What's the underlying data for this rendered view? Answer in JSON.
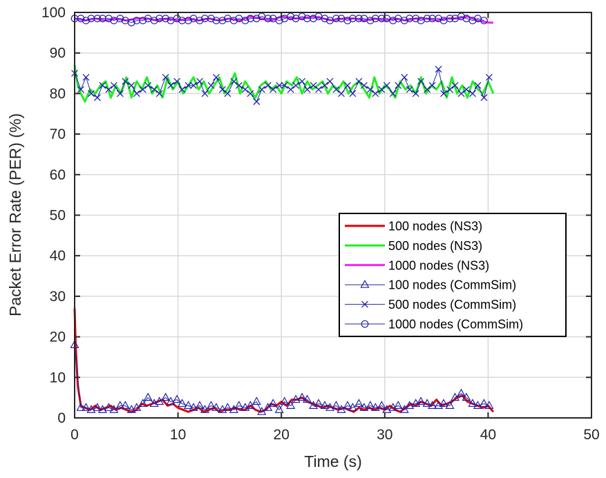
{
  "chart_data": {
    "type": "line",
    "title": "",
    "xlabel": "Time (s)",
    "ylabel": "Packet Error Rate (PER) (%)",
    "xlim": [
      0,
      50
    ],
    "ylim": [
      0,
      100
    ],
    "xticks": [
      0,
      10,
      20,
      30,
      40,
      50
    ],
    "yticks": [
      0,
      10,
      20,
      30,
      40,
      50,
      60,
      70,
      80,
      90,
      100
    ],
    "grid": true,
    "legend_position": "center-right",
    "series": [
      {
        "name": "100 nodes (NS3)",
        "color": "#e00000",
        "marker": "none",
        "x": [
          0,
          0.1,
          0.3,
          0.6,
          1.0,
          1.5,
          2.0,
          2.5,
          3.0,
          3.5,
          4.0,
          4.5,
          5.0,
          5.5,
          6.0,
          6.5,
          7.0,
          7.5,
          8.0,
          8.5,
          9.0,
          9.5,
          10.0,
          10.5,
          11.0,
          11.5,
          12.0,
          12.5,
          13.0,
          13.5,
          14.0,
          14.5,
          15.0,
          15.5,
          16.0,
          16.5,
          17.0,
          17.5,
          18.0,
          18.5,
          19.0,
          19.5,
          20.0,
          20.5,
          21.0,
          21.5,
          22.0,
          22.5,
          23.0,
          23.5,
          24.0,
          24.5,
          25.0,
          25.5,
          26.0,
          26.5,
          27.0,
          27.5,
          28.0,
          28.5,
          29.0,
          29.5,
          30.0,
          30.5,
          31.0,
          31.5,
          32.0,
          32.5,
          33.0,
          33.5,
          34.0,
          34.5,
          35.0,
          35.5,
          36.0,
          36.5,
          37.0,
          37.5,
          38.0,
          38.5,
          39.0,
          39.5,
          40.0,
          40.5
        ],
        "y": [
          27,
          18,
          8,
          3,
          2.5,
          2,
          3,
          2,
          2.5,
          3,
          2,
          2.5,
          2,
          1.5,
          2,
          3.5,
          3,
          3.5,
          4,
          4.5,
          3,
          3.5,
          2.5,
          2,
          1.5,
          2,
          2.5,
          1.5,
          2,
          2.5,
          1.5,
          2,
          2,
          2.5,
          2,
          2,
          3,
          2,
          1.5,
          2,
          3.5,
          3,
          4,
          3,
          4.5,
          4.5,
          5,
          4,
          3.5,
          3,
          2.5,
          3,
          2.5,
          2,
          2.5,
          2,
          1.5,
          2.5,
          2,
          2.5,
          2,
          2.5,
          2,
          3,
          2,
          1.5,
          2.5,
          3.5,
          3,
          4,
          3.5,
          3,
          4.5,
          3,
          3.5,
          4,
          5,
          5.5,
          4,
          3.5,
          3,
          2.5,
          3,
          1.5
        ]
      },
      {
        "name": "500 nodes (NS3)",
        "color": "#22ee22",
        "marker": "none",
        "x": [
          0,
          0.3,
          0.6,
          1.0,
          1.5,
          2.0,
          2.5,
          3.0,
          3.5,
          4.0,
          4.5,
          5.0,
          5.5,
          6.0,
          6.5,
          7.0,
          7.5,
          8.0,
          8.5,
          9.0,
          9.5,
          10.0,
          10.5,
          11.0,
          11.5,
          12.0,
          12.5,
          13.0,
          13.5,
          14.0,
          14.5,
          15.0,
          15.5,
          16.0,
          16.5,
          17.0,
          17.5,
          18.0,
          18.5,
          19.0,
          19.5,
          20.0,
          20.5,
          21.0,
          21.5,
          22.0,
          22.5,
          23.0,
          23.5,
          24.0,
          24.5,
          25.0,
          25.5,
          26.0,
          26.5,
          27.0,
          27.5,
          28.0,
          28.5,
          29.0,
          29.5,
          30.0,
          30.5,
          31.0,
          31.5,
          32.0,
          32.5,
          33.0,
          33.5,
          34.0,
          34.5,
          35.0,
          35.5,
          36.0,
          36.5,
          37.0,
          37.5,
          38.0,
          38.5,
          39.0,
          39.5,
          40.0,
          40.5
        ],
        "y": [
          87,
          82,
          80,
          78,
          81,
          80,
          82,
          83,
          79,
          82,
          80,
          84,
          79,
          83,
          81,
          84,
          80,
          82,
          79,
          84,
          81,
          83,
          80,
          82,
          84,
          81,
          83,
          80,
          82,
          84,
          80,
          82,
          85,
          80,
          83,
          81,
          79,
          82,
          83,
          81,
          82,
          80,
          83,
          82,
          84,
          80,
          83,
          81,
          82,
          83,
          80,
          82,
          81,
          83,
          80,
          82,
          83,
          81,
          79,
          84,
          80,
          82,
          81,
          79,
          83,
          81,
          82,
          80,
          84,
          80,
          82,
          81,
          83,
          79,
          84,
          80,
          82,
          79,
          83,
          81,
          80,
          83,
          80
        ]
      },
      {
        "name": "1000 nodes (NS3)",
        "color": "#ee22ee",
        "marker": "none",
        "x": [
          0,
          1.0,
          2.0,
          3.0,
          4.0,
          5.0,
          6.0,
          7.0,
          8.0,
          9.0,
          10.0,
          11.0,
          12.0,
          13.0,
          14.0,
          15.0,
          16.0,
          17.0,
          18.0,
          19.0,
          20.0,
          21.0,
          22.0,
          23.0,
          24.0,
          25.0,
          26.0,
          27.0,
          28.0,
          29.0,
          30.0,
          31.0,
          32.0,
          33.0,
          34.0,
          35.0,
          36.0,
          37.0,
          38.0,
          39.0,
          40.0,
          40.5
        ],
        "y": [
          98.5,
          98,
          98.5,
          98,
          98.5,
          98,
          98.5,
          98.5,
          98,
          98.5,
          98,
          98.5,
          98,
          98.5,
          98,
          98.5,
          98,
          99,
          98.5,
          98,
          99,
          98.5,
          98.5,
          99,
          98.5,
          98,
          98.5,
          98.5,
          98,
          98.5,
          98,
          98.5,
          98,
          98.5,
          98.5,
          98,
          98.5,
          98.5,
          99,
          98,
          97.5,
          97.5
        ]
      },
      {
        "name": "100 nodes (CommSim)",
        "color": "#2222aa",
        "marker": "triangle",
        "x": [
          0,
          0.6,
          1.1,
          1.6,
          2.2,
          2.7,
          3.3,
          3.8,
          4.4,
          4.9,
          5.5,
          6.0,
          6.6,
          7.1,
          7.7,
          8.2,
          8.8,
          9.3,
          9.9,
          10.4,
          11.0,
          11.5,
          12.1,
          12.6,
          13.2,
          13.7,
          14.3,
          14.8,
          15.4,
          15.9,
          16.5,
          17.0,
          17.6,
          18.1,
          18.7,
          19.2,
          19.8,
          20.3,
          20.9,
          21.4,
          22.0,
          22.5,
          23.1,
          23.6,
          24.2,
          24.7,
          25.3,
          25.8,
          26.4,
          26.9,
          27.5,
          28.0,
          28.6,
          29.1,
          29.7,
          30.2,
          30.8,
          31.3,
          31.9,
          32.4,
          33.0,
          33.5,
          34.1,
          34.6,
          35.2,
          35.7,
          36.3,
          36.8,
          37.4,
          37.9,
          38.5,
          39.0,
          39.6,
          40.1
        ],
        "y": [
          18,
          2.5,
          2.5,
          2,
          2.5,
          2,
          2.5,
          2,
          3,
          3,
          2,
          2.5,
          3.5,
          5,
          3.5,
          4,
          5,
          4,
          4.5,
          3.5,
          3,
          2.5,
          3,
          2,
          3,
          2.5,
          2,
          2.5,
          2,
          3,
          2.5,
          3,
          4,
          1.5,
          2.5,
          3.5,
          2,
          4,
          3,
          4.5,
          5,
          4.5,
          3,
          3.5,
          3,
          2.5,
          3,
          2,
          3,
          2.5,
          3.5,
          2.5,
          3,
          2.5,
          3,
          2,
          2.5,
          3,
          2,
          3,
          3.5,
          4,
          3.5,
          3,
          3,
          3.5,
          3,
          5,
          6,
          5,
          3.5,
          3,
          3.5,
          3
        ]
      },
      {
        "name": "500 nodes (CommSim)",
        "color": "#2222aa",
        "marker": "x",
        "x": [
          0,
          0.6,
          1.1,
          1.6,
          2.2,
          2.7,
          3.3,
          3.8,
          4.4,
          4.9,
          5.5,
          6.0,
          6.6,
          7.1,
          7.7,
          8.2,
          8.8,
          9.3,
          9.9,
          10.4,
          11.0,
          11.5,
          12.1,
          12.6,
          13.2,
          13.7,
          14.3,
          14.8,
          15.4,
          15.9,
          16.5,
          17.0,
          17.6,
          18.1,
          18.7,
          19.2,
          19.8,
          20.3,
          20.9,
          21.4,
          22.0,
          22.5,
          23.1,
          23.6,
          24.2,
          24.7,
          25.3,
          25.8,
          26.4,
          26.9,
          27.5,
          28.0,
          28.6,
          29.1,
          29.7,
          30.2,
          30.8,
          31.3,
          31.9,
          32.4,
          33.0,
          33.5,
          34.1,
          34.6,
          35.2,
          35.7,
          36.3,
          36.8,
          37.4,
          37.9,
          38.5,
          39.0,
          39.6,
          40.1
        ],
        "y": [
          85,
          81,
          84,
          80,
          79,
          82,
          81,
          82,
          80,
          83,
          82,
          80,
          81,
          82,
          81,
          80,
          84,
          82,
          83,
          81,
          82,
          82,
          83,
          80,
          82,
          84,
          81,
          80,
          83,
          82,
          81,
          80,
          78,
          81,
          82,
          81,
          82,
          82,
          81,
          82,
          83,
          81,
          82,
          81,
          82,
          83,
          81,
          80,
          82,
          80,
          83,
          82,
          81,
          80,
          81,
          82,
          80,
          82,
          84,
          81,
          80,
          83,
          81,
          82,
          86,
          80,
          81,
          82,
          80,
          81,
          80,
          82,
          79,
          84
        ]
      },
      {
        "name": "1000 nodes (CommSim)",
        "color": "#2222aa",
        "marker": "circle",
        "x": [
          0,
          0.6,
          1.1,
          1.6,
          2.2,
          2.7,
          3.3,
          3.8,
          4.4,
          4.9,
          5.5,
          6.0,
          6.6,
          7.1,
          7.7,
          8.2,
          8.8,
          9.3,
          9.9,
          10.4,
          11.0,
          11.5,
          12.1,
          12.6,
          13.2,
          13.7,
          14.3,
          14.8,
          15.4,
          15.9,
          16.5,
          17.0,
          17.6,
          18.1,
          18.7,
          19.2,
          19.8,
          20.3,
          20.9,
          21.4,
          22.0,
          22.5,
          23.1,
          23.6,
          24.2,
          24.7,
          25.3,
          25.8,
          26.4,
          26.9,
          27.5,
          28.0,
          28.6,
          29.1,
          29.7,
          30.2,
          30.8,
          31.3,
          31.9,
          32.4,
          33.0,
          33.5,
          34.1,
          34.6,
          35.2,
          35.7,
          36.3,
          36.8,
          37.4,
          37.9,
          38.5,
          39.0,
          39.6
        ],
        "y": [
          98.5,
          98.5,
          98,
          98.5,
          98.5,
          98.5,
          98.5,
          98,
          98.5,
          98,
          97.5,
          98,
          98,
          98.5,
          98,
          98.5,
          98.5,
          98,
          98.5,
          98,
          98,
          98.5,
          98,
          98.5,
          98.5,
          98,
          98,
          98.5,
          98,
          98.5,
          98,
          98.5,
          98.5,
          99,
          98.5,
          98.5,
          98,
          98.5,
          99,
          98.5,
          99,
          98.5,
          98.5,
          99,
          98.5,
          98,
          98.5,
          98.5,
          98,
          98.5,
          98.5,
          98.5,
          98,
          98.5,
          98.5,
          98.5,
          98,
          98.5,
          98,
          98.5,
          98.5,
          98,
          98.5,
          98.5,
          98.5,
          98,
          98.5,
          98.5,
          99,
          98.5,
          98,
          98.5,
          98
        ]
      }
    ]
  }
}
